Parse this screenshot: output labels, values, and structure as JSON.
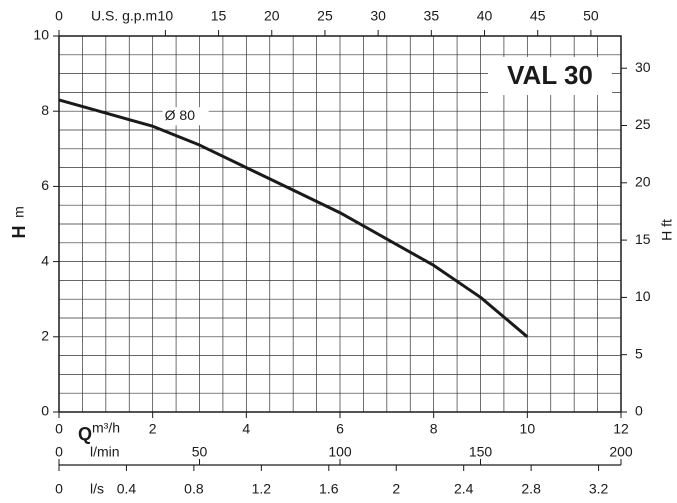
{
  "chart_data": {
    "type": "line",
    "title": "VAL 30",
    "x_label": {
      "symbol": "Q",
      "unit": "m³/h"
    },
    "y_label": {
      "symbol": "H",
      "unit": "m"
    },
    "y2_label": "H ft",
    "x": [
      0,
      1,
      2,
      3,
      4,
      5,
      6,
      7,
      8,
      9,
      10
    ],
    "series": [
      {
        "name": "Ø 80",
        "color": "#1a1a1a",
        "values": [
          8.3,
          7.95,
          7.6,
          7.1,
          6.5,
          5.9,
          5.3,
          4.6,
          3.9,
          3.05,
          2.0
        ]
      }
    ],
    "xlim": [
      0,
      12
    ],
    "xticks": [
      0,
      2,
      4,
      6,
      8,
      10,
      12
    ],
    "ylim": [
      0,
      10
    ],
    "yticks": [
      0,
      2,
      4,
      6,
      8,
      10
    ],
    "y2lim": [
      0,
      32.81
    ],
    "y2ticks": [
      0,
      5,
      10,
      15,
      20,
      25,
      30
    ],
    "x_gridlines": [
      0,
      0.5,
      1,
      1.5,
      2,
      2.5,
      3,
      3.5,
      4,
      4.5,
      5,
      5.5,
      6,
      6.5,
      7,
      7.5,
      8,
      8.5,
      9,
      9.5,
      10,
      10.5,
      11,
      11.5,
      12
    ],
    "y_gridlines": [
      0,
      0.5,
      1,
      1.5,
      2,
      2.5,
      3,
      3.5,
      4,
      4.5,
      5,
      5.5,
      6,
      6.5,
      7,
      7.5,
      8,
      8.5,
      9,
      9.5,
      10
    ],
    "grid": true,
    "gpm_axis": {
      "label": "U.S. g.p.m.",
      "lim": [
        0,
        52.83
      ],
      "ticks": [
        0,
        10,
        15,
        20,
        25,
        30,
        35,
        40,
        45,
        50
      ]
    },
    "lmin_axis": {
      "label": "l/min",
      "lim": [
        0,
        200
      ],
      "ticks": [
        0,
        50,
        100,
        150,
        200
      ]
    },
    "ls_axis": {
      "label": "l/s",
      "lim": [
        0,
        3.333
      ],
      "ticks": [
        0,
        0.4,
        0.8,
        1.2,
        1.6,
        2,
        2.4,
        2.8,
        3.2
      ]
    }
  }
}
